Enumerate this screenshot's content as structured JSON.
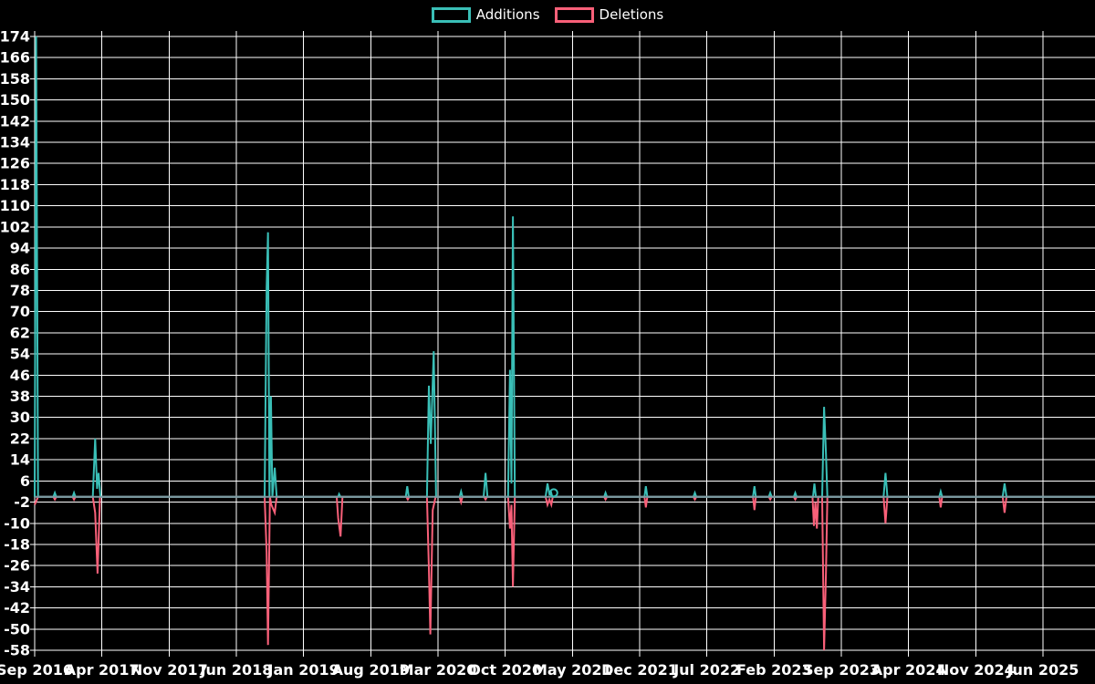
{
  "legend": {
    "items": [
      {
        "label": "Additions",
        "color": "#3abfb7"
      },
      {
        "label": "Deletions",
        "color": "#f96079"
      }
    ]
  },
  "chart_data": {
    "type": "line",
    "title": "",
    "xlabel": "",
    "ylabel": "",
    "background": "#000000",
    "grid": true,
    "grid_color": "#ffffff",
    "baseline_color": "#7d9aa1",
    "legend_position": "top-center",
    "x_unit": "months since Sep 2016 (weekly data)",
    "xlim": [
      0,
      110.4
    ],
    "ylim": [
      -58,
      174
    ],
    "x_tick_months": [
      0,
      7,
      14,
      21,
      28,
      35,
      42,
      49,
      56,
      63,
      70,
      77,
      84,
      91,
      98,
      105
    ],
    "x_tick_labels": [
      "Sep 2016",
      "Apr 2017",
      "Nov 2017",
      "Jun 2018",
      "Jan 2019",
      "Aug 2019",
      "Mar 2020",
      "Oct 2020",
      "May 2021",
      "Dec 2021",
      "Jul 2022",
      "Feb 2023",
      "Sep 2023",
      "Apr 2024",
      "Nov 2024",
      "Jun 2025"
    ],
    "y_ticks": [
      174,
      166,
      158,
      150,
      142,
      134,
      126,
      118,
      110,
      102,
      94,
      86,
      78,
      70,
      62,
      54,
      46,
      38,
      30,
      22,
      14,
      6,
      -2,
      -10,
      -18,
      -26,
      -34,
      -42,
      -50,
      -58
    ],
    "series": [
      {
        "name": "Additions",
        "color": "#3abfb7",
        "points": [
          [
            0,
            0
          ],
          [
            0.15,
            174
          ],
          [
            0.35,
            0
          ],
          [
            1.95,
            0
          ],
          [
            2.1,
            1.5
          ],
          [
            2.25,
            0
          ],
          [
            3.95,
            0
          ],
          [
            4.1,
            1.5
          ],
          [
            4.25,
            0
          ],
          [
            6.05,
            0
          ],
          [
            6.3,
            22
          ],
          [
            6.5,
            3
          ],
          [
            6.65,
            9
          ],
          [
            6.85,
            0
          ],
          [
            23.95,
            0
          ],
          [
            24.15,
            79
          ],
          [
            24.3,
            100
          ],
          [
            24.45,
            0
          ],
          [
            24.6,
            38
          ],
          [
            24.75,
            0
          ],
          [
            25.0,
            11
          ],
          [
            25.2,
            0
          ],
          [
            31.6,
            0
          ],
          [
            31.7,
            1
          ],
          [
            31.85,
            0
          ],
          [
            38.65,
            0
          ],
          [
            38.8,
            4
          ],
          [
            38.95,
            0
          ],
          [
            40.85,
            0
          ],
          [
            41.05,
            42
          ],
          [
            41.25,
            20
          ],
          [
            41.55,
            55
          ],
          [
            41.8,
            0
          ],
          [
            44.25,
            0
          ],
          [
            44.4,
            2
          ],
          [
            44.55,
            0
          ],
          [
            46.75,
            0
          ],
          [
            46.95,
            9
          ],
          [
            47.15,
            0
          ],
          [
            49.3,
            0
          ],
          [
            49.5,
            48
          ],
          [
            49.65,
            5
          ],
          [
            49.8,
            106
          ],
          [
            50.0,
            0
          ],
          [
            53.2,
            0
          ],
          [
            53.4,
            5
          ],
          [
            53.6,
            1
          ],
          [
            53.75,
            2
          ],
          [
            53.9,
            0
          ],
          [
            59.3,
            0
          ],
          [
            59.45,
            1.5
          ],
          [
            59.6,
            0
          ],
          [
            63.5,
            0
          ],
          [
            63.65,
            4
          ],
          [
            63.8,
            0
          ],
          [
            68.6,
            0
          ],
          [
            68.75,
            1.5
          ],
          [
            68.9,
            0
          ],
          [
            74.8,
            0
          ],
          [
            74.95,
            4
          ],
          [
            75.1,
            0
          ],
          [
            76.45,
            0
          ],
          [
            76.6,
            1.5
          ],
          [
            76.75,
            0
          ],
          [
            79.05,
            0
          ],
          [
            79.2,
            1.5
          ],
          [
            79.35,
            0
          ],
          [
            81.05,
            0
          ],
          [
            81.2,
            5
          ],
          [
            81.35,
            0
          ],
          [
            82.0,
            0
          ],
          [
            82.2,
            34
          ],
          [
            82.4,
            16
          ],
          [
            82.55,
            0
          ],
          [
            88.4,
            0
          ],
          [
            88.6,
            9
          ],
          [
            88.8,
            0
          ],
          [
            94.2,
            0
          ],
          [
            94.35,
            2
          ],
          [
            94.5,
            0
          ],
          [
            100.8,
            0
          ],
          [
            101.0,
            5
          ],
          [
            101.2,
            0
          ],
          [
            110.4,
            0
          ]
        ]
      },
      {
        "name": "Deletions",
        "color": "#f96079",
        "points": [
          [
            0,
            -3
          ],
          [
            0.35,
            0
          ],
          [
            1.95,
            0
          ],
          [
            2.1,
            -1
          ],
          [
            2.25,
            0
          ],
          [
            3.95,
            0
          ],
          [
            4.1,
            -1
          ],
          [
            4.25,
            0
          ],
          [
            6.05,
            0
          ],
          [
            6.3,
            -6
          ],
          [
            6.55,
            -29
          ],
          [
            6.8,
            0
          ],
          [
            23.95,
            0
          ],
          [
            24.15,
            -21
          ],
          [
            24.3,
            -56
          ],
          [
            24.5,
            0
          ],
          [
            24.65,
            -3
          ],
          [
            25.0,
            -6
          ],
          [
            25.2,
            0
          ],
          [
            31.45,
            0
          ],
          [
            31.6,
            -8
          ],
          [
            31.85,
            -15
          ],
          [
            32.05,
            0
          ],
          [
            38.7,
            0
          ],
          [
            38.85,
            -1
          ],
          [
            39.0,
            0
          ],
          [
            40.85,
            0
          ],
          [
            41.05,
            -27
          ],
          [
            41.2,
            -52
          ],
          [
            41.45,
            -5
          ],
          [
            41.75,
            0
          ],
          [
            44.25,
            0
          ],
          [
            44.4,
            -2
          ],
          [
            44.55,
            0
          ],
          [
            46.8,
            0
          ],
          [
            46.95,
            -1
          ],
          [
            47.1,
            0
          ],
          [
            49.3,
            0
          ],
          [
            49.5,
            -12
          ],
          [
            49.65,
            -3
          ],
          [
            49.8,
            -34
          ],
          [
            50.0,
            0
          ],
          [
            53.2,
            0
          ],
          [
            53.4,
            -3
          ],
          [
            53.6,
            -1
          ],
          [
            53.8,
            -3
          ],
          [
            53.95,
            0
          ],
          [
            59.3,
            0
          ],
          [
            59.45,
            -1
          ],
          [
            59.6,
            0
          ],
          [
            63.5,
            0
          ],
          [
            63.65,
            -4
          ],
          [
            63.8,
            0
          ],
          [
            68.6,
            0
          ],
          [
            68.75,
            -1
          ],
          [
            68.9,
            0
          ],
          [
            74.8,
            0
          ],
          [
            74.95,
            -5
          ],
          [
            75.1,
            0
          ],
          [
            76.45,
            0
          ],
          [
            76.6,
            -1
          ],
          [
            76.75,
            0
          ],
          [
            79.05,
            0
          ],
          [
            79.2,
            -1
          ],
          [
            79.35,
            0
          ],
          [
            81.0,
            0
          ],
          [
            81.15,
            -11
          ],
          [
            81.3,
            -2
          ],
          [
            81.45,
            -12
          ],
          [
            81.6,
            0
          ],
          [
            82.0,
            0
          ],
          [
            82.2,
            -58
          ],
          [
            82.4,
            -28
          ],
          [
            82.55,
            0
          ],
          [
            88.4,
            0
          ],
          [
            88.6,
            -10
          ],
          [
            88.8,
            0
          ],
          [
            94.2,
            0
          ],
          [
            94.35,
            -4
          ],
          [
            94.5,
            0
          ],
          [
            100.8,
            0
          ],
          [
            101.0,
            -6
          ],
          [
            101.2,
            0
          ],
          [
            110.4,
            0
          ]
        ]
      }
    ],
    "circle_markers": [
      {
        "series": "Additions",
        "m": 54.05,
        "v": 1.5
      }
    ]
  }
}
